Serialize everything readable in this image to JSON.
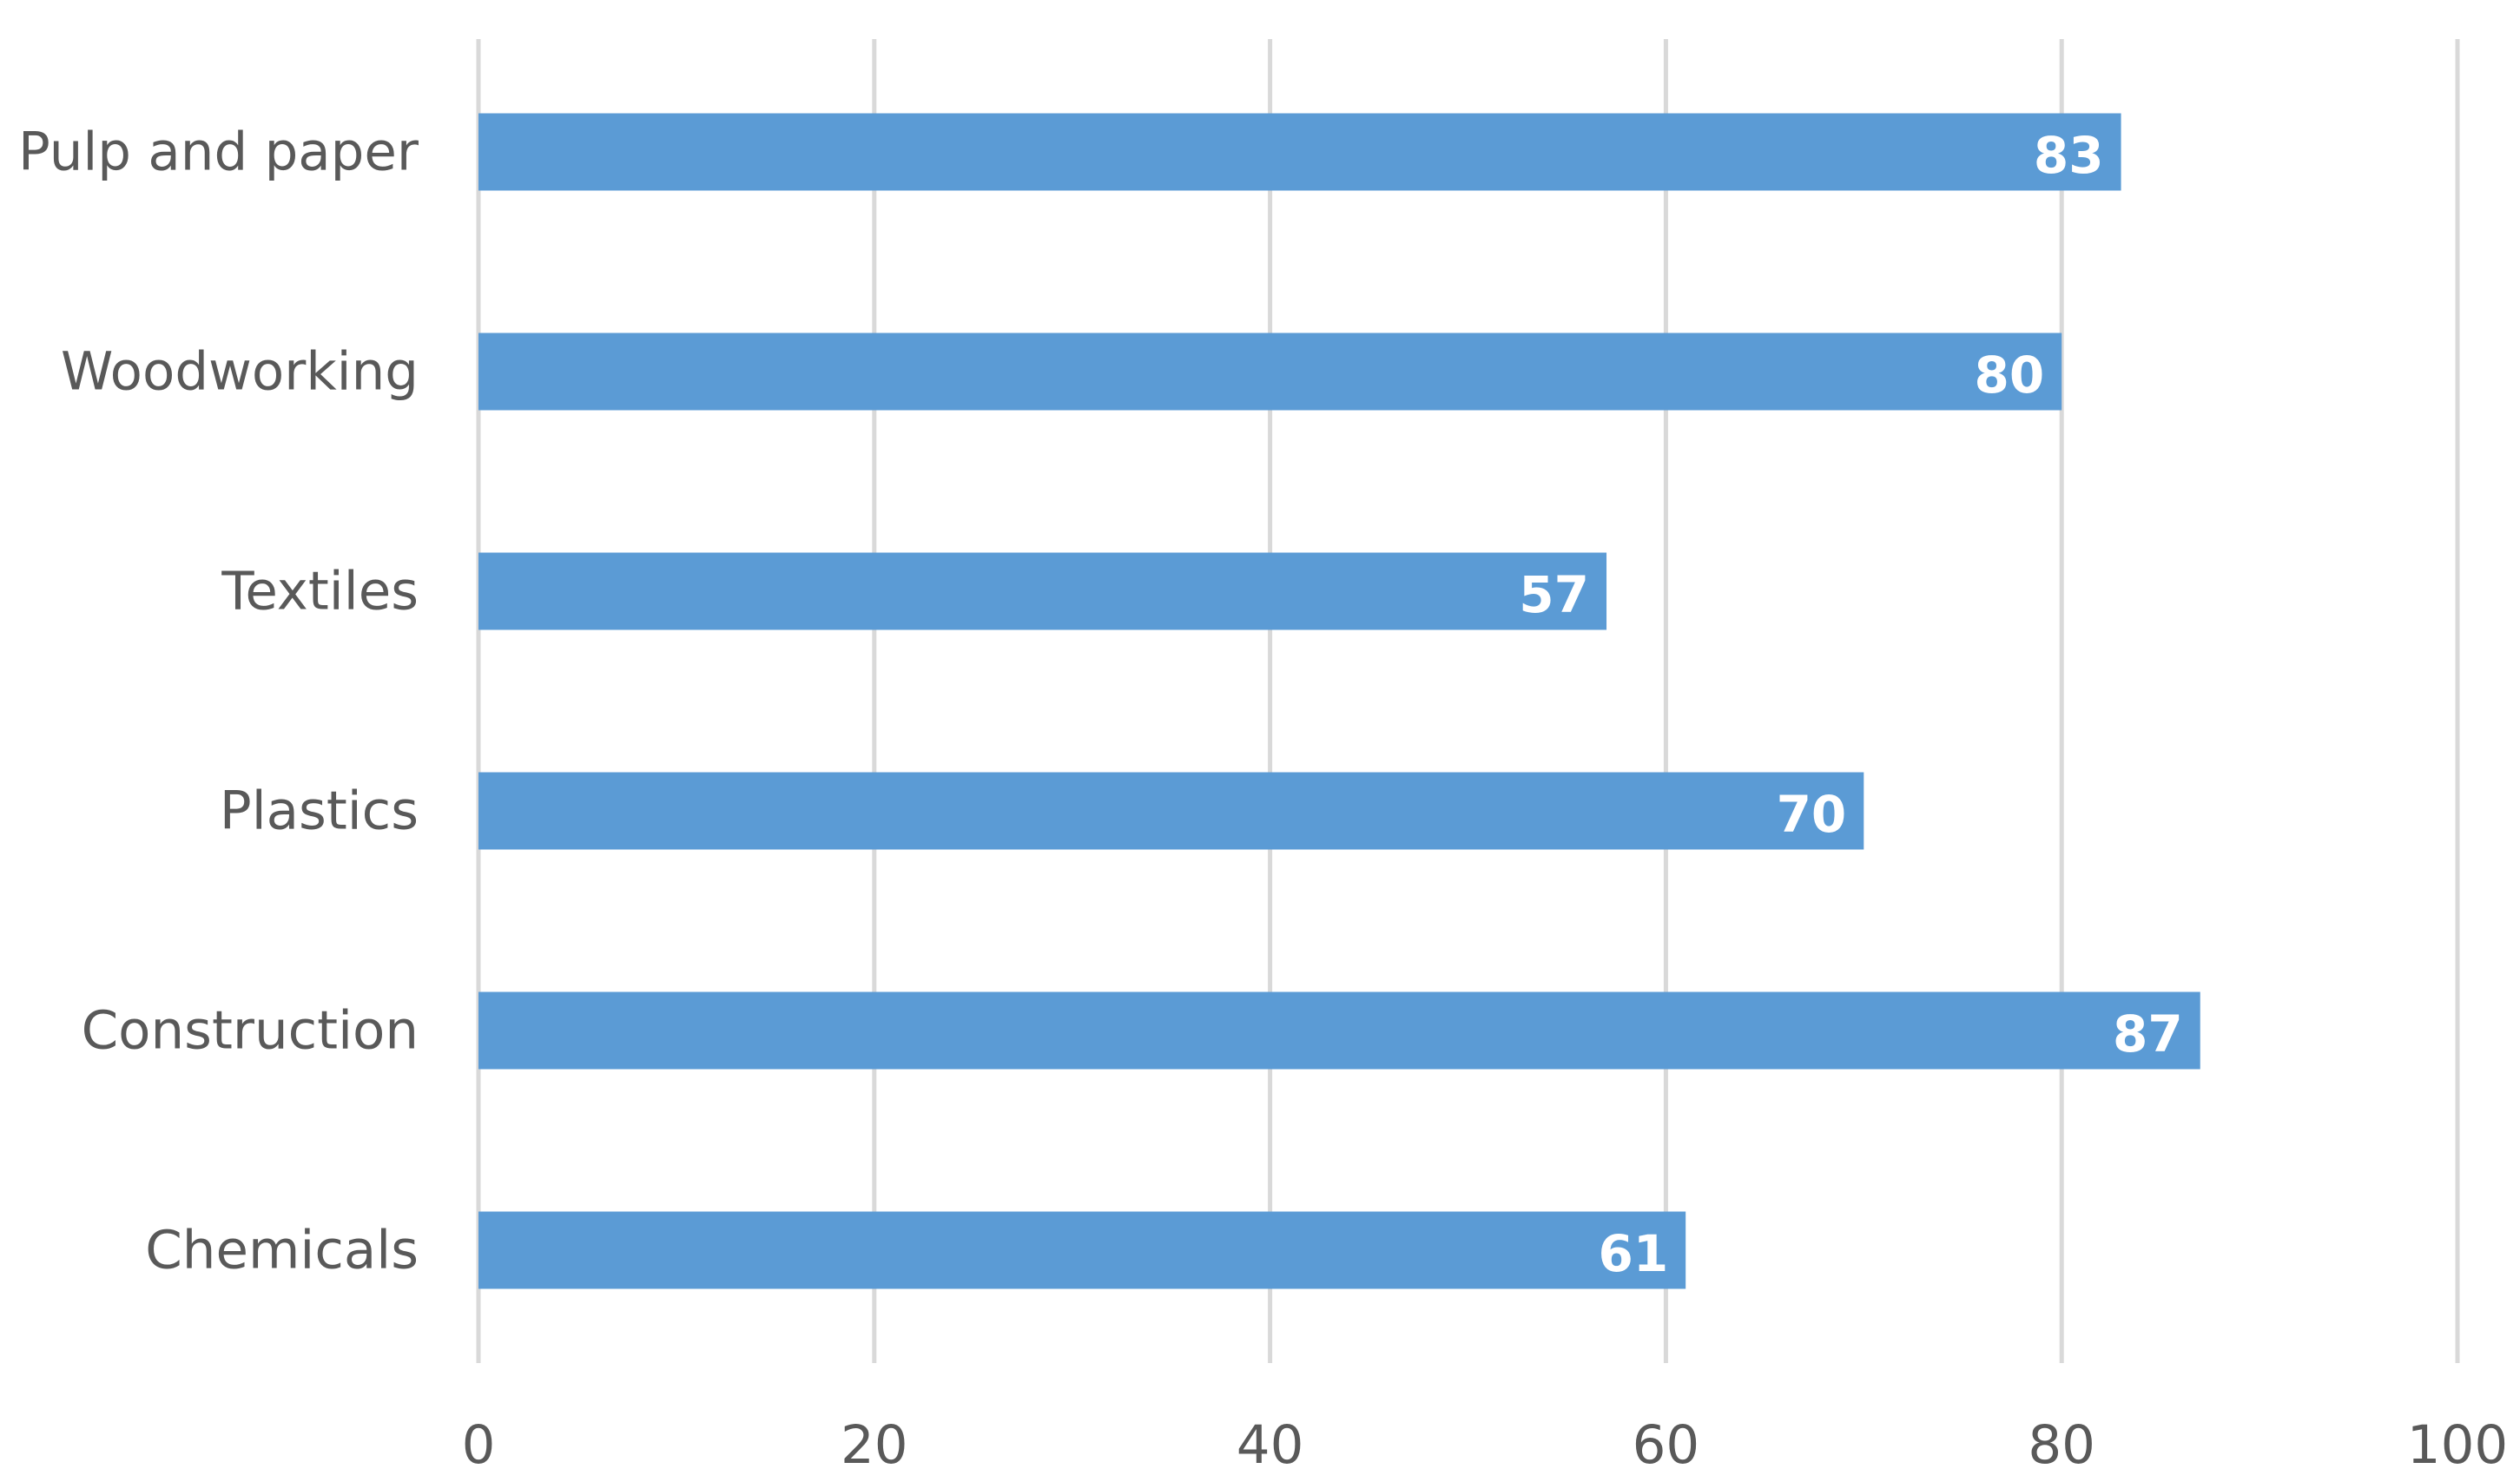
{
  "chart_data": {
    "type": "bar",
    "orientation": "horizontal",
    "title": "",
    "xlabel": "",
    "ylabel": "",
    "categories": [
      "Pulp and paper",
      "Woodworking",
      "Textiles",
      "Plastics",
      "Construction",
      "Chemicals"
    ],
    "values": [
      83,
      80,
      57,
      70,
      87,
      61
    ],
    "xlim": [
      0,
      100
    ],
    "xticks": [
      0,
      20,
      40,
      60,
      80,
      100
    ],
    "grid": "vertical",
    "legend": "none",
    "bar_color": "#5b9bd5",
    "data_label_color": "#ffffff",
    "gridline_color": "#d9d9d9",
    "text_color": "#595959"
  }
}
